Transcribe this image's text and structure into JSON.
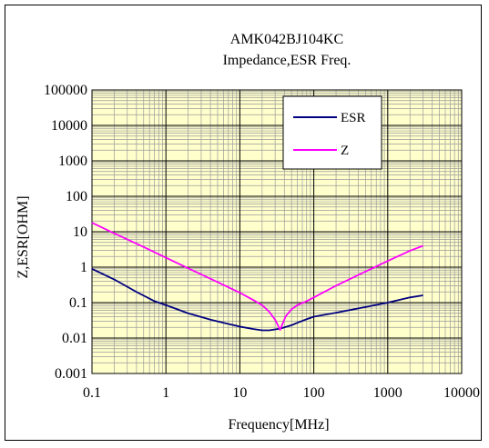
{
  "chart_data": {
    "type": "line",
    "title": "AMK042BJ104KC",
    "subtitle": "Impedance,ESR Freq.",
    "xlabel": "Frequency[MHz]",
    "ylabel": "Z,ESR[OHM]",
    "x_scale": "log",
    "y_scale": "log",
    "xlim": [
      0.1,
      10000
    ],
    "ylim": [
      0.001,
      100000
    ],
    "x_ticks": [
      "0.1",
      "1",
      "10",
      "100",
      "1000",
      "10000"
    ],
    "y_ticks": [
      "0.001",
      "0.01",
      "0.1",
      "1",
      "10",
      "100",
      "1000",
      "10000",
      "100000"
    ],
    "grid": true,
    "legend_position": "top-right",
    "colors": {
      "plot_bg": "#ffffcc",
      "minor_grid": "#9a9a9a",
      "major_grid": "#000000"
    },
    "series": [
      {
        "name": "ESR",
        "color": "#000080",
        "x": [
          0.1,
          0.2,
          0.4,
          0.7,
          1,
          2,
          4,
          7,
          10,
          15,
          20,
          25,
          30,
          35,
          40,
          50,
          60,
          80,
          100,
          200,
          500,
          1000,
          2000,
          3000
        ],
        "y": [
          0.9,
          0.45,
          0.2,
          0.11,
          0.085,
          0.05,
          0.033,
          0.025,
          0.021,
          0.018,
          0.0165,
          0.0165,
          0.0175,
          0.0185,
          0.02,
          0.023,
          0.027,
          0.034,
          0.04,
          0.052,
          0.075,
          0.1,
          0.14,
          0.16
        ]
      },
      {
        "name": "Z",
        "color": "#ff00ff",
        "x": [
          0.1,
          0.2,
          0.5,
          1,
          2,
          5,
          10,
          15,
          20,
          25,
          30,
          33,
          35,
          38,
          42,
          50,
          60,
          80,
          100,
          200,
          500,
          1000,
          2000,
          3000
        ],
        "y": [
          18,
          9,
          3.7,
          1.85,
          0.93,
          0.38,
          0.19,
          0.12,
          0.085,
          0.055,
          0.033,
          0.022,
          0.017,
          0.026,
          0.042,
          0.065,
          0.085,
          0.11,
          0.14,
          0.3,
          0.75,
          1.5,
          2.9,
          4.0
        ]
      }
    ]
  }
}
